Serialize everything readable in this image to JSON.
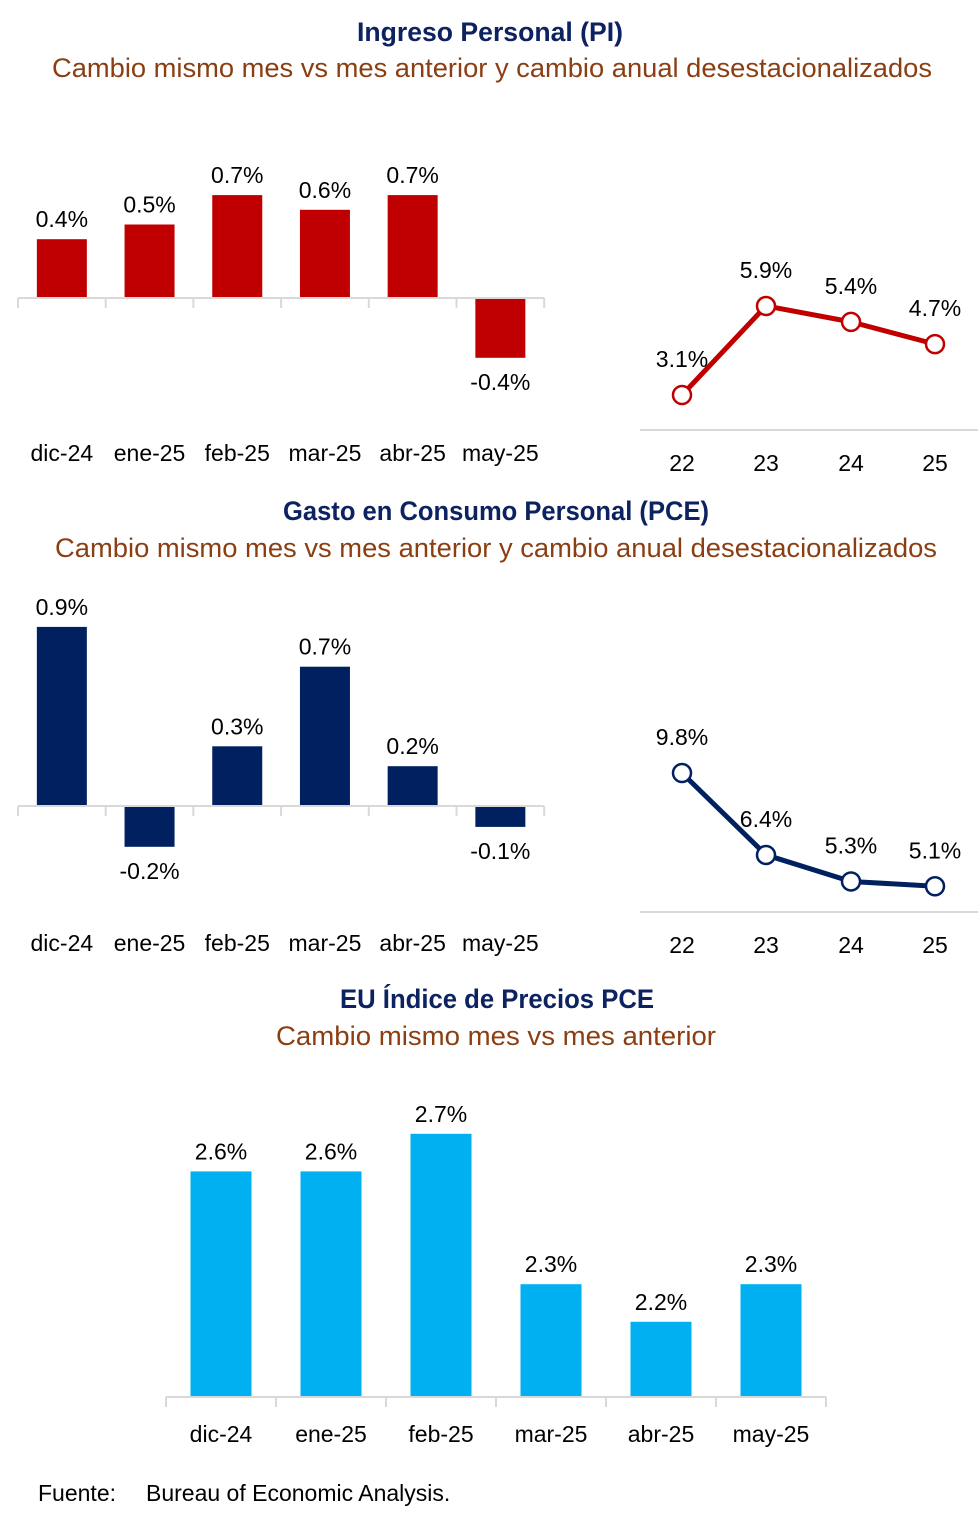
{
  "colors": {
    "title": "#0d2260",
    "subtitle": "#8b3e12",
    "pi": "#c00000",
    "pce": "#002060",
    "price": "#00b0f0",
    "axis": "#d9d9d9"
  },
  "chart_data": [
    {
      "type": "bar",
      "title": "Ingreso Personal (PI)",
      "subtitle": "Cambio mismo mes vs mes anterior y cambio anual desestacionalizados",
      "categories": [
        "dic-24",
        "ene-25",
        "feb-25",
        "mar-25",
        "abr-25",
        "may-25"
      ],
      "values": [
        0.4,
        0.5,
        0.7,
        0.6,
        0.7,
        -0.4
      ],
      "labels": [
        "0.4%",
        "0.5%",
        "0.7%",
        "0.6%",
        "0.7%",
        "-0.4%"
      ],
      "color": "#c00000"
    },
    {
      "type": "line",
      "categories": [
        "22",
        "23",
        "24",
        "25"
      ],
      "values": [
        3.1,
        5.9,
        5.4,
        4.7
      ],
      "labels": [
        "3.1%",
        "5.9%",
        "5.4%",
        "4.7%"
      ],
      "color": "#c00000"
    },
    {
      "type": "bar",
      "title": "Gasto en Consumo Personal (PCE)",
      "subtitle": "Cambio mismo mes vs mes anterior y cambio anual desestacionalizados",
      "categories": [
        "dic-24",
        "ene-25",
        "feb-25",
        "mar-25",
        "abr-25",
        "may-25"
      ],
      "values": [
        0.9,
        -0.2,
        0.3,
        0.7,
        0.2,
        -0.1
      ],
      "labels": [
        "0.9%",
        "-0.2%",
        "0.3%",
        "0.7%",
        "0.2%",
        "-0.1%"
      ],
      "color": "#002060"
    },
    {
      "type": "line",
      "categories": [
        "22",
        "23",
        "24",
        "25"
      ],
      "values": [
        9.8,
        6.4,
        5.3,
        5.1
      ],
      "labels": [
        "9.8%",
        "6.4%",
        "5.3%",
        "5.1%"
      ],
      "color": "#002060"
    },
    {
      "type": "bar",
      "title": "EU Índice de Precios PCE",
      "subtitle": "Cambio mismo mes vs mes anterior",
      "categories": [
        "dic-24",
        "ene-25",
        "feb-25",
        "mar-25",
        "abr-25",
        "may-25"
      ],
      "values": [
        2.6,
        2.6,
        2.7,
        2.3,
        2.2,
        2.3
      ],
      "labels": [
        "2.6%",
        "2.6%",
        "2.7%",
        "2.3%",
        "2.2%",
        "2.3%"
      ],
      "ylim": [
        2.0,
        2.7
      ],
      "color": "#00b0f0"
    }
  ],
  "source": {
    "label": "Fuente:",
    "text": "Bureau of Economic Analysis."
  }
}
